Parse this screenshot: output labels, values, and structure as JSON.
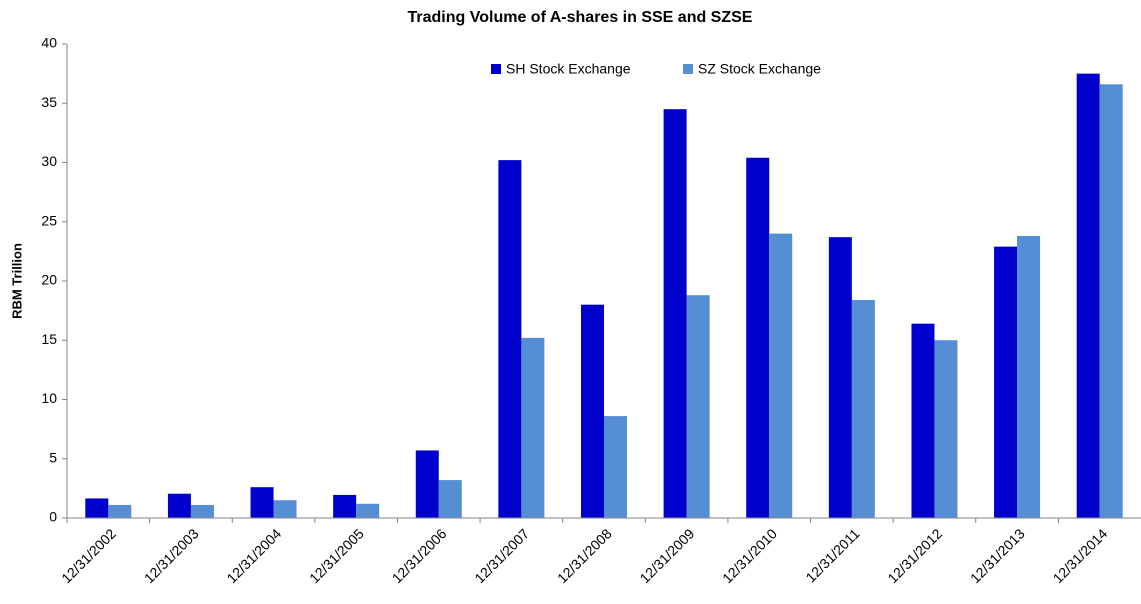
{
  "chart_data": {
    "type": "bar",
    "title": "Trading Volume of A-shares in SSE and SZSE",
    "y_label": "RBM Trillion",
    "categories": [
      "12/31/2002",
      "12/31/2003",
      "12/31/2004",
      "12/31/2005",
      "12/31/2006",
      "12/31/2007",
      "12/31/2008",
      "12/31/2009",
      "12/31/2010",
      "12/31/2011",
      "12/31/2012",
      "12/31/2013",
      "12/31/2014"
    ],
    "series": [
      {
        "name": "SH Stock Exchange",
        "color": "#0000cc",
        "values": [
          1.65,
          2.05,
          2.6,
          1.95,
          5.7,
          30.2,
          18.0,
          34.5,
          30.4,
          23.7,
          16.4,
          22.9,
          37.5
        ]
      },
      {
        "name": "SZ Stock Exchange",
        "color": "#558ed5",
        "values": [
          1.1,
          1.1,
          1.5,
          1.2,
          3.2,
          15.2,
          8.6,
          18.8,
          24.0,
          18.4,
          15.0,
          23.8,
          36.6
        ]
      }
    ],
    "ylim": [
      0,
      40
    ],
    "yticks": [
      0,
      5,
      10,
      15,
      20,
      25,
      30,
      35,
      40
    ],
    "grid": false,
    "legend": "top"
  }
}
